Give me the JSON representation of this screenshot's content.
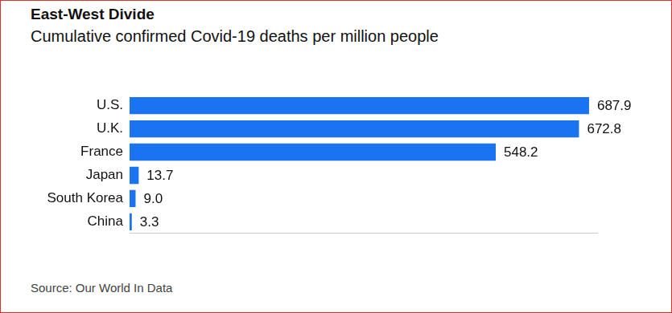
{
  "chart_data": {
    "type": "bar",
    "orientation": "horizontal",
    "title": "East-West Divide",
    "subtitle": "Cumulative confirmed Covid-19 deaths per million people",
    "source": "Source: Our World In Data",
    "categories": [
      "U.S.",
      "U.K.",
      "France",
      "Japan",
      "South Korea",
      "China"
    ],
    "values": [
      687.9,
      672.8,
      548.2,
      13.7,
      9.0,
      3.3
    ],
    "value_labels": [
      "687.9",
      "672.8",
      "548.2",
      "13.7",
      "9.0",
      "3.3"
    ],
    "color": "#1a73f0",
    "xlim": [
      0,
      700
    ],
    "xticks": [],
    "grid": false,
    "data_labels": true,
    "tick_labels": "y"
  }
}
